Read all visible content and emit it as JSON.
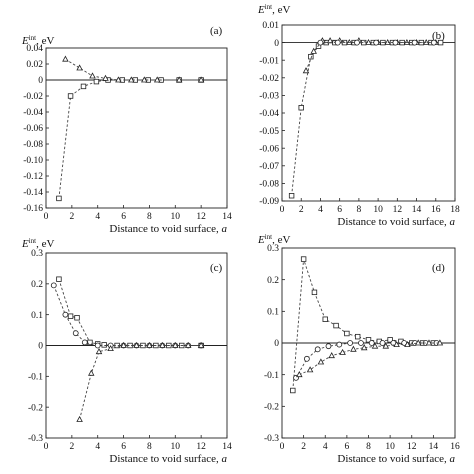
{
  "chart_data": [
    {
      "type": "scatter",
      "panel_label": "(a)",
      "ylabel_main": "E",
      "ylabel_sup": "int",
      "ylabel_unit": ", eV",
      "xlabel_main": "Distance to void surface, ",
      "xlabel_var": "a",
      "xlim": [
        0,
        14
      ],
      "ylim": [
        -0.16,
        0.04
      ],
      "xticks": [
        "0",
        "2",
        "4",
        "6",
        "8",
        "10",
        "12",
        "14"
      ],
      "yticks": [
        "0.04",
        "0.02",
        "0",
        "-0.02",
        "-0.04",
        "-0.06",
        "-0.08",
        "-0.10",
        "-0.12",
        "-0.14",
        "-0.16"
      ],
      "series": [
        {
          "marker": "square",
          "x": [
            1.0,
            1.9,
            2.9,
            3.9,
            4.8,
            5.9,
            6.9,
            7.9,
            8.9,
            10.3,
            12.0
          ],
          "y": [
            -0.148,
            -0.02,
            -0.008,
            -0.002,
            0.0,
            0.0,
            0.0,
            0.0,
            0.0,
            0.0,
            0.0
          ]
        },
        {
          "marker": "triangle",
          "x": [
            1.5,
            2.6,
            3.6,
            4.6,
            5.6,
            6.6,
            7.6,
            8.6,
            10.3,
            12.0
          ],
          "y": [
            0.026,
            0.015,
            0.005,
            0.002,
            0.0,
            0.0,
            0.0,
            0.0,
            0.0,
            0.0
          ]
        }
      ]
    },
    {
      "type": "scatter",
      "panel_label": "(b)",
      "ylabel_main": "E",
      "ylabel_sup": "int",
      "ylabel_unit": ", eV",
      "xlabel_main": "Distance to void surface, ",
      "xlabel_var": "a",
      "xlim": [
        0,
        18
      ],
      "ylim": [
        -0.09,
        0.01
      ],
      "xticks": [
        "0",
        "2",
        "4",
        "6",
        "8",
        "10",
        "12",
        "14",
        "16",
        "18"
      ],
      "yticks": [
        "0.01",
        "0",
        "-0.01",
        "-0.02",
        "-0.03",
        "-0.04",
        "-0.05",
        "-0.06",
        "-0.07",
        "-0.08",
        "-0.09"
      ],
      "series": [
        {
          "marker": "square",
          "x": [
            1.0,
            2.0,
            3.0,
            3.8,
            4.6,
            5.5,
            6.5,
            7.5,
            8.5,
            9.5,
            10.5,
            11.5,
            12.5,
            13.5,
            14.5,
            15.5,
            16.5
          ],
          "y": [
            -0.087,
            -0.037,
            -0.008,
            -0.002,
            0.0,
            0.0,
            0.0,
            0.0,
            0.0,
            0.0,
            0.0,
            0.0,
            0.0,
            0.0,
            0.0,
            0.0,
            0.0
          ]
        },
        {
          "marker": "triangle",
          "x": [
            2.5,
            3.3,
            4.2,
            5.0,
            6.0,
            7.0,
            8.0,
            9.0,
            10.0,
            11.0,
            12.0,
            13.0,
            14.0,
            15.0,
            16.0
          ],
          "y": [
            -0.016,
            -0.005,
            0.001,
            0.001,
            0.001,
            0.0,
            0.001,
            0.0,
            0.0,
            0.0,
            0.0,
            0.0,
            0.0,
            0.0,
            0.0
          ]
        },
        {
          "marker": "circle",
          "x": [
            4.0,
            5.8,
            7.8,
            9.8,
            11.8,
            13.8,
            15.8
          ],
          "y": [
            0.0,
            0.0,
            0.0,
            0.0,
            0.0,
            0.0,
            0.0
          ]
        }
      ]
    },
    {
      "type": "scatter",
      "panel_label": "(c)",
      "ylabel_main": "E",
      "ylabel_sup": "int",
      "ylabel_unit": ", eV",
      "xlabel_main": "Distance to void surface, ",
      "xlabel_var": "a",
      "xlim": [
        0,
        14
      ],
      "ylim": [
        -0.3,
        0.3
      ],
      "xticks": [
        "0",
        "2",
        "4",
        "6",
        "8",
        "10",
        "12",
        "14"
      ],
      "yticks": [
        "0.3",
        "0.2",
        "0.1",
        "0",
        "-0.1",
        "-0.2",
        "-0.3"
      ],
      "series": [
        {
          "marker": "square",
          "x": [
            1.0,
            1.9,
            2.4,
            3.4,
            4.0,
            4.5,
            5.5,
            6.5,
            7.5,
            8.5,
            9.5,
            10.5,
            12.0
          ],
          "y": [
            0.215,
            0.095,
            0.09,
            0.01,
            0.005,
            0.002,
            0.0,
            0.0,
            0.0,
            0.0,
            0.0,
            0.0,
            0.0
          ]
        },
        {
          "marker": "circle",
          "x": [
            0.6,
            1.5,
            2.3,
            3.0,
            4.0,
            5.0,
            6.0,
            7.0,
            8.0,
            9.0,
            10.0,
            11.0,
            12.0
          ],
          "y": [
            0.195,
            0.1,
            0.04,
            0.01,
            0.0,
            0.0,
            0.0,
            0.0,
            0.0,
            0.0,
            0.0,
            0.0,
            0.0
          ]
        },
        {
          "marker": "triangle",
          "x": [
            2.6,
            3.5,
            4.1,
            5.0,
            6.0,
            7.0,
            8.0,
            9.0,
            10.0,
            11.0,
            12.0
          ],
          "y": [
            -0.24,
            -0.09,
            -0.02,
            -0.01,
            0.0,
            0.0,
            0.0,
            0.0,
            0.0,
            0.0,
            0.0
          ]
        }
      ]
    },
    {
      "type": "scatter",
      "panel_label": "(d)",
      "ylabel_main": "E",
      "ylabel_sup": "int",
      "ylabel_unit": ", eV",
      "xlabel_main": "Distance to void surface, ",
      "xlabel_var": "a",
      "xlim": [
        0,
        16
      ],
      "ylim": [
        -0.3,
        0.3
      ],
      "xticks": [
        "0",
        "2",
        "4",
        "6",
        "8",
        "10",
        "12",
        "14",
        "16"
      ],
      "yticks": [
        "0.3",
        "0.2",
        "0.1",
        "0",
        "-0.1",
        "-0.2",
        "-0.3"
      ],
      "series": [
        {
          "marker": "square",
          "x": [
            1.0,
            2.0,
            3.0,
            4.0,
            5.0,
            6.0,
            7.0,
            8.0,
            9.0,
            10.0,
            11.0,
            12.0,
            13.0,
            14.0
          ],
          "y": [
            -0.15,
            0.265,
            0.16,
            0.075,
            0.055,
            0.03,
            0.02,
            0.01,
            0.005,
            0.01,
            0.005,
            0.0,
            0.0,
            0.0
          ]
        },
        {
          "marker": "circle",
          "x": [
            1.3,
            2.3,
            3.3,
            4.3,
            5.3,
            6.3,
            7.3,
            8.3,
            9.3,
            10.3,
            11.3,
            12.3,
            13.3,
            14.3
          ],
          "y": [
            -0.11,
            -0.05,
            -0.02,
            -0.01,
            -0.005,
            0.0,
            0.0,
            0.0,
            0.0,
            0.0,
            0.0,
            0.0,
            0.0,
            0.0
          ]
        },
        {
          "marker": "triangle",
          "x": [
            1.6,
            2.6,
            3.6,
            4.6,
            5.6,
            6.6,
            7.6,
            8.6,
            9.6,
            10.6,
            11.6,
            12.6,
            13.6,
            14.6
          ],
          "y": [
            -0.1,
            -0.085,
            -0.06,
            -0.04,
            -0.03,
            -0.02,
            -0.015,
            -0.01,
            -0.01,
            -0.005,
            -0.005,
            0.0,
            0.0,
            0.0
          ]
        }
      ]
    }
  ]
}
